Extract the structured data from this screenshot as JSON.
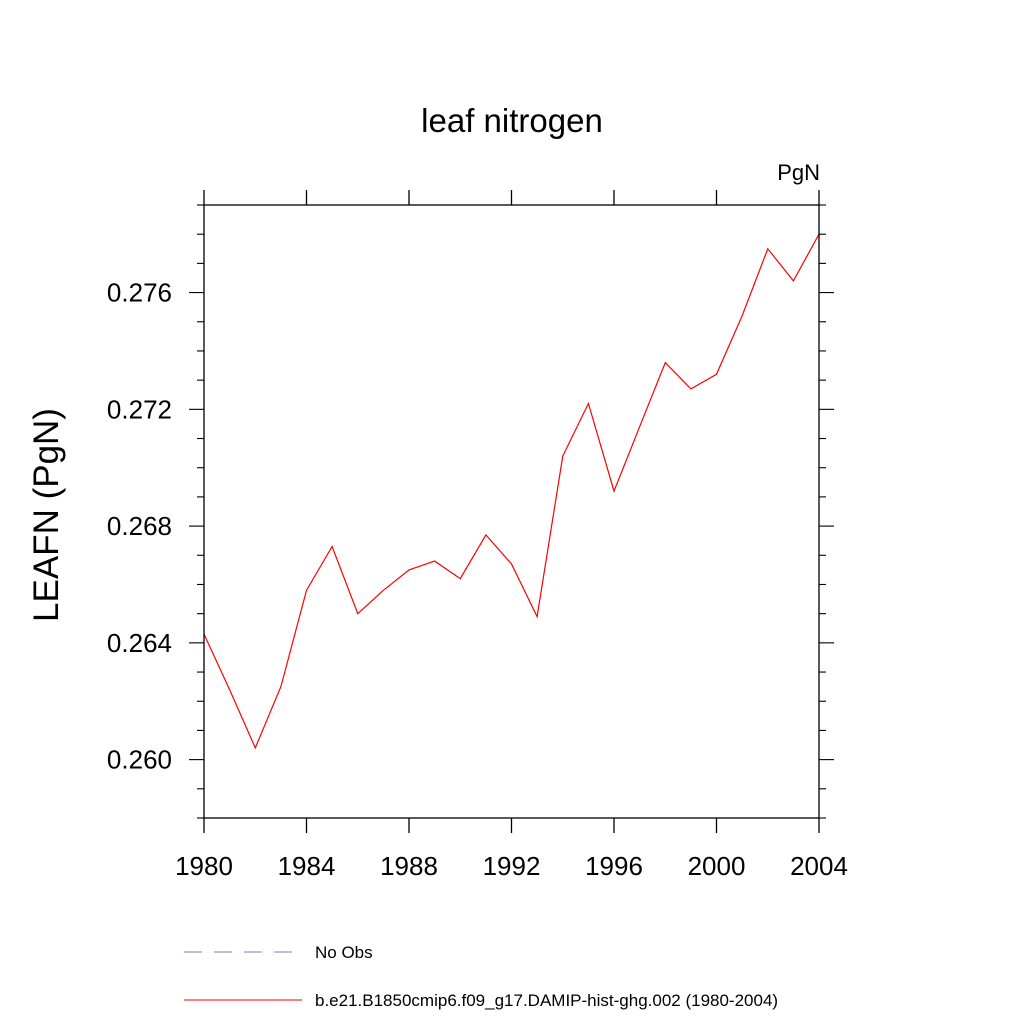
{
  "chart_data": {
    "type": "line",
    "title": "leaf nitrogen",
    "units_label": "PgN",
    "ylabel": "LEAFN  (PgN)",
    "xlabel": "",
    "xlim": [
      1980,
      2004
    ],
    "ylim": [
      0.258,
      0.279
    ],
    "x_ticks": [
      1980,
      1984,
      1988,
      1992,
      1996,
      2000,
      2004
    ],
    "x_tick_labels": [
      "1980",
      "1984",
      "1988",
      "1992",
      "1996",
      "2000",
      "2004"
    ],
    "y_ticks": [
      0.26,
      0.264,
      0.268,
      0.272,
      0.276
    ],
    "y_tick_labels": [
      "0.260",
      "0.264",
      "0.268",
      "0.272",
      "0.276"
    ],
    "grid": false,
    "legend_position": "bottom",
    "series": [
      {
        "name": "b.e21.B1850cmip6.f09_g17.DAMIP-hist-ghg.002 (1980-2004)",
        "color": "#ff0000",
        "style": "solid",
        "x": [
          1980,
          1981,
          1982,
          1983,
          1984,
          1985,
          1986,
          1987,
          1988,
          1989,
          1990,
          1991,
          1992,
          1993,
          1994,
          1995,
          1996,
          1997,
          1998,
          1999,
          2000,
          2001,
          2002,
          2003,
          2004
        ],
        "values": [
          0.2643,
          0.2624,
          0.2604,
          0.2625,
          0.2658,
          0.2673,
          0.265,
          0.2658,
          0.2665,
          0.2668,
          0.2662,
          0.2677,
          0.2667,
          0.2649,
          0.2704,
          0.2722,
          0.2692,
          0.2714,
          0.2736,
          0.2727,
          0.2732,
          0.2752,
          0.2775,
          0.2764,
          0.278
        ]
      }
    ],
    "legend": [
      {
        "label": "No Obs",
        "color": "#7777cc",
        "style": "dashed"
      },
      {
        "label": "b.e21.B1850cmip6.f09_g17.DAMIP-hist-ghg.002 (1980-2004)",
        "color": "#ff0000",
        "style": "solid"
      }
    ]
  }
}
